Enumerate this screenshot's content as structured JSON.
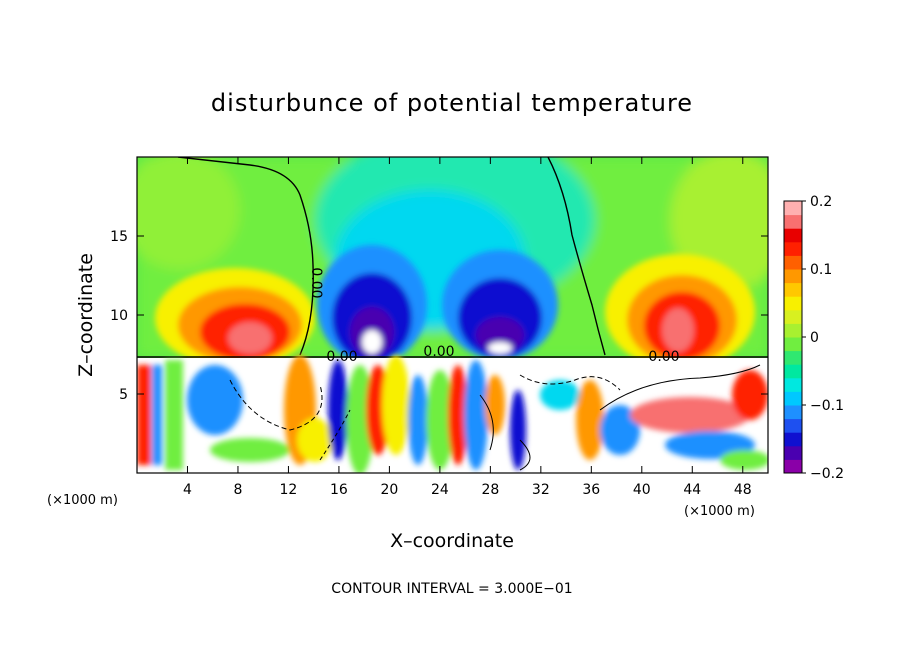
{
  "chart_data": {
    "type": "heatmap",
    "title": "disturbunce of potential temperature",
    "xlabel": "X–coordinate",
    "ylabel": "Z–coordinate",
    "x_unit": "(×1000 m)",
    "y_unit": "(×1000 m)",
    "xlim": [
      0,
      50
    ],
    "ylim": [
      0,
      20
    ],
    "x_ticks": [
      4,
      8,
      12,
      16,
      20,
      24,
      28,
      32,
      36,
      40,
      44,
      48
    ],
    "y_ticks": [
      5,
      10,
      15
    ],
    "colorbar": {
      "range": [
        -0.2,
        0.2
      ],
      "ticks": [
        "0.2",
        "0.1",
        "0",
        "−0.1",
        "−0.2"
      ],
      "tick_values": [
        0.2,
        0.1,
        0,
        -0.1,
        -0.2
      ],
      "colors": [
        "#8a00a8",
        "#4a00b0",
        "#1010d0",
        "#1e50f0",
        "#1e90ff",
        "#00c8ff",
        "#00e8e0",
        "#00e8a0",
        "#30e870",
        "#70ee40",
        "#a8f030",
        "#d8f020",
        "#f8f000",
        "#ffc800",
        "#ff9800",
        "#ff6000",
        "#ff2000",
        "#e80000",
        "#f87070",
        "#ffb0b0"
      ]
    },
    "contour_label": "0.00",
    "contour_interval_text": "CONTOUR INTERVAL = 3.000E−01",
    "features": [
      {
        "type": "warm",
        "x": 9,
        "z": 10,
        "value": 0.18
      },
      {
        "type": "warm",
        "x": 43,
        "z": 10,
        "value": 0.2
      },
      {
        "type": "cold",
        "x": 19,
        "z": 10,
        "value": -0.2
      },
      {
        "type": "cold",
        "x": 28,
        "z": 10,
        "value": -0.16
      },
      {
        "type": "cold",
        "x": 24,
        "z": 14,
        "value": -0.06
      }
    ],
    "grid": false,
    "legend": "colorbar-right"
  }
}
